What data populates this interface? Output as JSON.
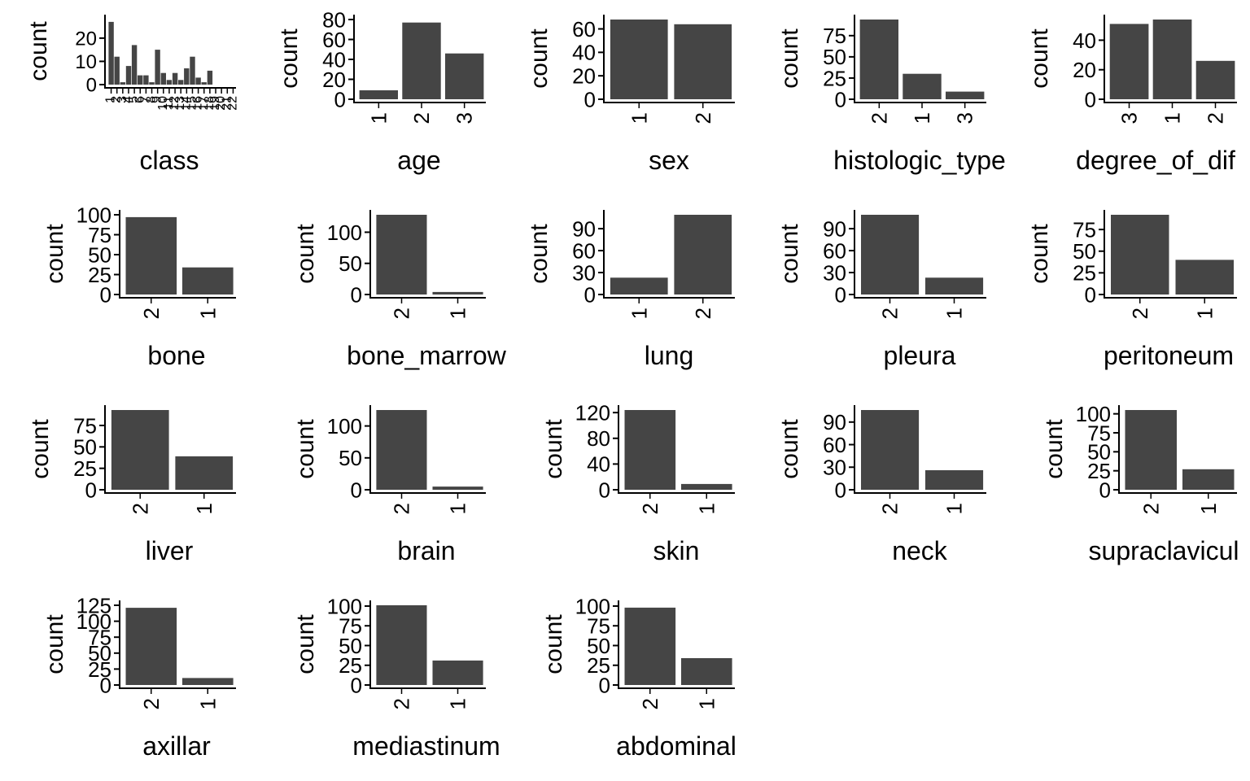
{
  "chart_data": [
    {
      "type": "bar",
      "xlabel": "class",
      "ylabel": "count",
      "ylim": [
        0,
        28
      ],
      "yticks": [
        0,
        10,
        20
      ],
      "categories": [
        "1",
        "2",
        "3",
        "4",
        "5",
        "6",
        "7",
        "8",
        "9",
        "10",
        "11",
        "12",
        "13",
        "14",
        "15",
        "16",
        "17",
        "18",
        "19",
        "20",
        "21",
        "22"
      ],
      "values": [
        27,
        12,
        1,
        8,
        17,
        4,
        4,
        1,
        15,
        5,
        2,
        5,
        2,
        7,
        12,
        3,
        1,
        6,
        0,
        0,
        0,
        0
      ],
      "tick_labels_visible": false
    },
    {
      "type": "bar",
      "xlabel": "age",
      "ylabel": "count",
      "ylim": [
        0,
        80
      ],
      "yticks": [
        0,
        20,
        40,
        60,
        80
      ],
      "categories": [
        "1",
        "2",
        "3"
      ],
      "values": [
        9,
        77,
        46
      ]
    },
    {
      "type": "bar",
      "xlabel": "sex",
      "ylabel": "count",
      "ylim": [
        0,
        68
      ],
      "yticks": [
        0,
        20,
        40,
        60
      ],
      "categories": [
        "1",
        "2"
      ],
      "values": [
        68,
        64
      ]
    },
    {
      "type": "bar",
      "xlabel": "histologic_type",
      "ylabel": "count",
      "ylim": [
        0,
        94
      ],
      "yticks": [
        0,
        25,
        50,
        75
      ],
      "categories": [
        "2",
        "1",
        "3"
      ],
      "values": [
        94,
        30,
        9
      ]
    },
    {
      "type": "bar",
      "xlabel": "degree_of_dif",
      "ylabel": "count",
      "ylim": [
        0,
        54
      ],
      "yticks": [
        0,
        20,
        40
      ],
      "categories": [
        "3",
        "1",
        "2"
      ],
      "values": [
        51,
        54,
        26
      ]
    },
    {
      "type": "bar",
      "xlabel": "bone",
      "ylabel": "count",
      "ylim": [
        0,
        100
      ],
      "yticks": [
        0,
        25,
        50,
        75,
        100
      ],
      "categories": [
        "2",
        "1"
      ],
      "values": [
        97,
        34
      ]
    },
    {
      "type": "bar",
      "xlabel": "bone_marrow",
      "ylabel": "count",
      "ylim": [
        0,
        128
      ],
      "yticks": [
        0,
        50,
        100
      ],
      "categories": [
        "2",
        "1"
      ],
      "values": [
        128,
        4
      ]
    },
    {
      "type": "bar",
      "xlabel": "lung",
      "ylabel": "count",
      "ylim": [
        0,
        109
      ],
      "yticks": [
        0,
        30,
        60,
        90
      ],
      "categories": [
        "1",
        "2"
      ],
      "values": [
        23,
        109
      ]
    },
    {
      "type": "bar",
      "xlabel": "pleura",
      "ylabel": "count",
      "ylim": [
        0,
        109
      ],
      "yticks": [
        0,
        30,
        60,
        90
      ],
      "categories": [
        "2",
        "1"
      ],
      "values": [
        109,
        23
      ]
    },
    {
      "type": "bar",
      "xlabel": "peritoneum",
      "ylabel": "count",
      "ylim": [
        0,
        92
      ],
      "yticks": [
        0,
        25,
        50,
        75
      ],
      "categories": [
        "2",
        "1"
      ],
      "values": [
        92,
        40
      ]
    },
    {
      "type": "bar",
      "xlabel": "liver",
      "ylabel": "count",
      "ylim": [
        0,
        93
      ],
      "yticks": [
        0,
        25,
        50,
        75
      ],
      "categories": [
        "2",
        "1"
      ],
      "values": [
        93,
        39
      ]
    },
    {
      "type": "bar",
      "xlabel": "brain",
      "ylabel": "count",
      "ylim": [
        0,
        125
      ],
      "yticks": [
        0,
        50,
        100
      ],
      "categories": [
        "2",
        "1"
      ],
      "values": [
        125,
        5
      ]
    },
    {
      "type": "bar",
      "xlabel": "skin",
      "ylabel": "count",
      "ylim": [
        0,
        124
      ],
      "yticks": [
        0,
        40,
        80,
        120
      ],
      "categories": [
        "2",
        "1"
      ],
      "values": [
        124,
        9
      ]
    },
    {
      "type": "bar",
      "xlabel": "neck",
      "ylabel": "count",
      "ylim": [
        0,
        106
      ],
      "yticks": [
        0,
        30,
        60,
        90
      ],
      "categories": [
        "2",
        "1"
      ],
      "values": [
        106,
        26
      ]
    },
    {
      "type": "bar",
      "xlabel": "supraclavicul",
      "ylabel": "count",
      "ylim": [
        0,
        105
      ],
      "yticks": [
        0,
        25,
        50,
        75,
        100
      ],
      "categories": [
        "2",
        "1"
      ],
      "values": [
        105,
        27
      ]
    },
    {
      "type": "bar",
      "xlabel": "axillar",
      "ylabel": "count",
      "ylim": [
        0,
        125
      ],
      "yticks": [
        0,
        25,
        50,
        75,
        100,
        125
      ],
      "categories": [
        "2",
        "1"
      ],
      "values": [
        121,
        11
      ]
    },
    {
      "type": "bar",
      "xlabel": "mediastinum",
      "ylabel": "count",
      "ylim": [
        0,
        101
      ],
      "yticks": [
        0,
        25,
        50,
        75,
        100
      ],
      "categories": [
        "2",
        "1"
      ],
      "values": [
        101,
        31
      ]
    },
    {
      "type": "bar",
      "xlabel": "abdominal",
      "ylabel": "count",
      "ylim": [
        0,
        101
      ],
      "yticks": [
        0,
        25,
        50,
        75,
        100
      ],
      "categories": [
        "2",
        "1"
      ],
      "values": [
        98,
        34
      ]
    }
  ],
  "colors": {
    "bar": "#454545",
    "axis": "#000000",
    "background": "#ffffff"
  }
}
